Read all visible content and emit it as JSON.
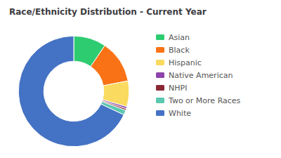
{
  "chart_data": {
    "type": "donut",
    "title": "Race/Ethnicity Distribution - Current Year",
    "categories": [
      "Asian",
      "Black",
      "Hispanic",
      "Native American",
      "NHPI",
      "Two or More Races",
      "White"
    ],
    "values": [
      9.5,
      12.5,
      7.5,
      0.6,
      0.5,
      1.4,
      68.0
    ],
    "colors": [
      "#2ecc71",
      "#f97316",
      "#fadb5f",
      "#8e44ad",
      "#8b2635",
      "#5bc8af",
      "#4472c4"
    ],
    "legend": "right"
  }
}
